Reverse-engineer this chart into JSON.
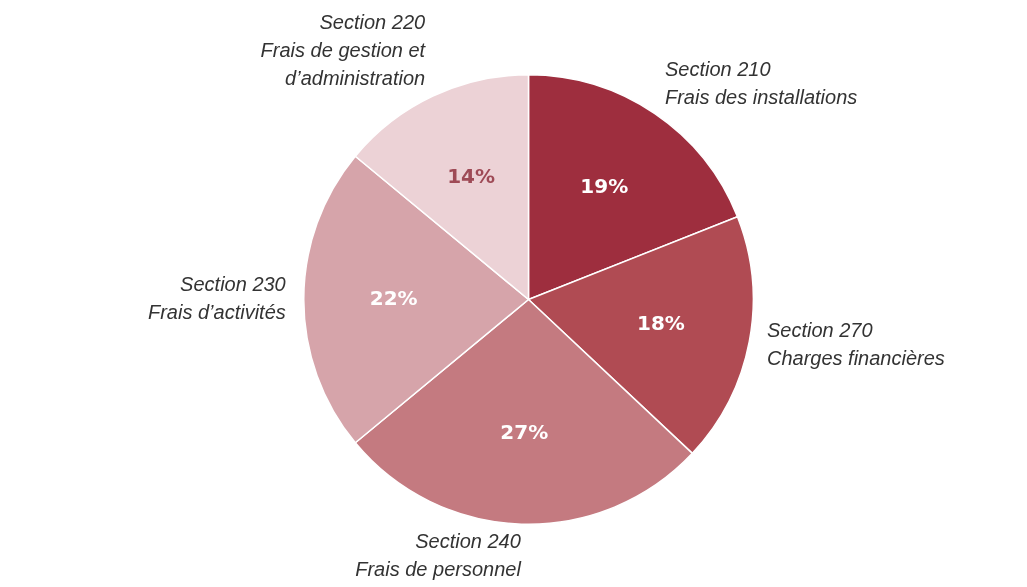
{
  "chart_data": {
    "type": "pie",
    "categories": [
      "Section 210\nFrais des installations",
      "Section 270\nCharges financières",
      "Section 240\nFrais de personnel",
      "Section 230\nFrais d’activités",
      "Section 220\nFrais de gestion et\nd’administration"
    ],
    "values": [
      19,
      18,
      27,
      22,
      14
    ],
    "value_labels": [
      "19%",
      "18%",
      "27%",
      "22%",
      "14%"
    ],
    "colors": [
      "#9e2e3e",
      "#b04b53",
      "#c47a80",
      "#d6a4aa",
      "#ecd2d6"
    ],
    "legend": false
  }
}
